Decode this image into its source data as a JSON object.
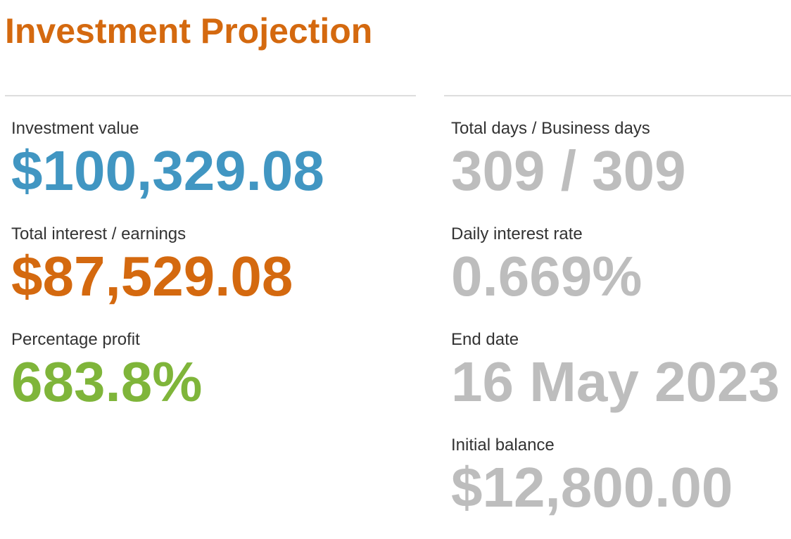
{
  "title": "Investment Projection",
  "colors": {
    "title": "#d4690f",
    "investment_value": "#4196c2",
    "total_interest": "#d4690f",
    "percentage_profit": "#7fb53a",
    "muted_value": "#bdbdbd",
    "label": "#333333"
  },
  "left": {
    "investment_value": {
      "label": "Investment value",
      "value": "$100,329.08"
    },
    "total_interest": {
      "label": "Total interest / earnings",
      "value": "$87,529.08"
    },
    "percentage_profit": {
      "label": "Percentage profit",
      "value": "683.8%"
    }
  },
  "right": {
    "total_days": {
      "label": "Total days / Business days",
      "value": "309 / 309"
    },
    "daily_rate": {
      "label": "Daily interest rate",
      "value": "0.669%"
    },
    "end_date": {
      "label": "End date",
      "value": "16 May 2023"
    },
    "initial_balance": {
      "label": "Initial balance",
      "value": "$12,800.00"
    }
  }
}
